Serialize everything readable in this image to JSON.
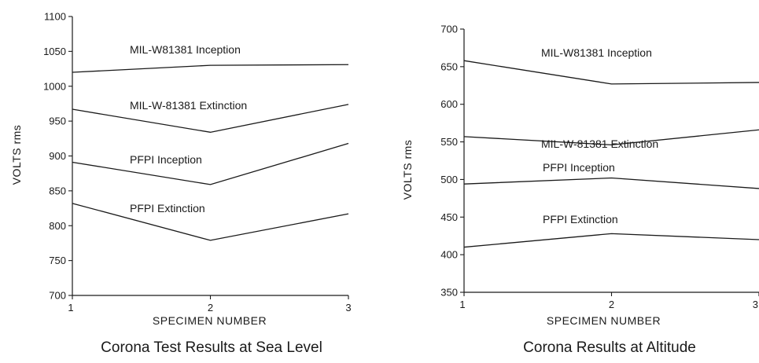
{
  "chart_data": [
    {
      "type": "line",
      "title": "Corona Test Results at Sea Level",
      "xlabel": "SPECIMEN NUMBER",
      "ylabel": "VOLTS rms",
      "x": [
        1,
        2,
        3
      ],
      "x_ticks": [
        "1",
        "2",
        "3"
      ],
      "xlim": [
        1,
        3
      ],
      "ylim": [
        700,
        1100
      ],
      "y_ticks": [
        "700",
        "750",
        "800",
        "850",
        "900",
        "950",
        "1000",
        "1050",
        "1100"
      ],
      "grid": false,
      "legend": "none",
      "series": [
        {
          "name": "MIL-W81381 Inception",
          "values": [
            1020,
            1030,
            1031
          ]
        },
        {
          "name": "MIL-W-81381 Extinction",
          "values": [
            967,
            934,
            974
          ]
        },
        {
          "name": "PFPI Inception",
          "values": [
            891,
            859,
            918
          ]
        },
        {
          "name": "PFPI Extinction",
          "values": [
            832,
            779,
            817
          ]
        }
      ]
    },
    {
      "type": "line",
      "title": "Corona Results at Altitude",
      "xlabel": "SPECIMEN NUMBER",
      "ylabel": "VOLTS rms",
      "x": [
        1,
        2,
        3
      ],
      "x_ticks": [
        "1",
        "2",
        "3"
      ],
      "xlim": [
        1,
        3
      ],
      "ylim": [
        350,
        700
      ],
      "y_ticks": [
        "350",
        "400",
        "450",
        "500",
        "550",
        "600",
        "650",
        "700"
      ],
      "grid": false,
      "legend": "none",
      "series": [
        {
          "name": "MIL-W81381 Inception",
          "values": [
            658,
            627,
            629
          ]
        },
        {
          "name": "MIL-W-81381 Extinction",
          "values": [
            557,
            546,
            566
          ]
        },
        {
          "name": "PFPI Inception",
          "values": [
            494,
            502,
            488
          ]
        },
        {
          "name": "PFPI Extinction",
          "values": [
            410,
            428,
            420
          ]
        }
      ]
    }
  ]
}
